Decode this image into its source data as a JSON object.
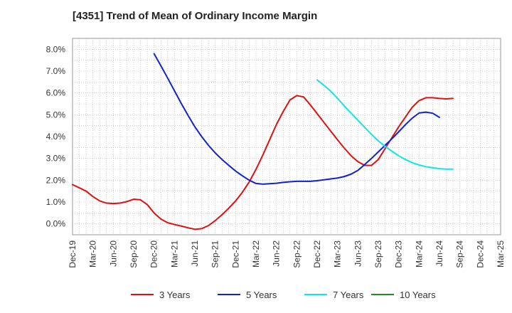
{
  "title": "[4351]  Trend of Mean of Ordinary Income Margin",
  "chart_data": {
    "type": "line",
    "title": "[4351]  Trend of Mean of Ordinary Income Margin",
    "xlabel": "",
    "ylabel": "",
    "x_range": [
      "2019-12",
      "2025-03"
    ],
    "ylim": [
      -0.5,
      8.5
    ],
    "y_ticks": [
      0,
      1,
      2,
      3,
      4,
      5,
      6,
      7,
      8
    ],
    "y_tick_labels": [
      "0.0%",
      "1.0%",
      "2.0%",
      "3.0%",
      "4.0%",
      "5.0%",
      "6.0%",
      "7.0%",
      "8.0%"
    ],
    "x_ticks": [
      "2019-12",
      "2020-03",
      "2020-06",
      "2020-09",
      "2020-12",
      "2021-03",
      "2021-06",
      "2021-09",
      "2021-12",
      "2022-03",
      "2022-06",
      "2022-09",
      "2022-12",
      "2023-03",
      "2023-06",
      "2023-09",
      "2023-12",
      "2024-03",
      "2024-06",
      "2024-09",
      "2024-12",
      "2025-03"
    ],
    "x_tick_labels": [
      "Dec-19",
      "Mar-20",
      "Jun-20",
      "Sep-20",
      "Dec-20",
      "Mar-21",
      "Jun-21",
      "Sep-21",
      "Dec-21",
      "Mar-22",
      "Jun-22",
      "Sep-22",
      "Dec-22",
      "Mar-23",
      "Jun-23",
      "Sep-23",
      "Dec-23",
      "Mar-24",
      "Jun-24",
      "Sep-24",
      "Dec-24",
      "Mar-25"
    ],
    "grid": true,
    "legend_position": "bottom",
    "series": [
      {
        "name": "3 Years",
        "color": "#dd1111",
        "points": [
          [
            "2019-12",
            1.8
          ],
          [
            "2020-01",
            1.65
          ],
          [
            "2020-02",
            1.5
          ],
          [
            "2020-03",
            1.25
          ],
          [
            "2020-04",
            1.05
          ],
          [
            "2020-05",
            0.95
          ],
          [
            "2020-06",
            0.93
          ],
          [
            "2020-07",
            0.95
          ],
          [
            "2020-08",
            1.02
          ],
          [
            "2020-09",
            1.13
          ],
          [
            "2020-10",
            1.1
          ],
          [
            "2020-11",
            0.88
          ],
          [
            "2020-12",
            0.5
          ],
          [
            "2021-01",
            0.22
          ],
          [
            "2021-02",
            0.05
          ],
          [
            "2021-03",
            -0.03
          ],
          [
            "2021-04",
            -0.1
          ],
          [
            "2021-05",
            -0.18
          ],
          [
            "2021-06",
            -0.25
          ],
          [
            "2021-07",
            -0.22
          ],
          [
            "2021-08",
            -0.08
          ],
          [
            "2021-09",
            0.15
          ],
          [
            "2021-10",
            0.42
          ],
          [
            "2021-11",
            0.72
          ],
          [
            "2021-12",
            1.05
          ],
          [
            "2022-01",
            1.45
          ],
          [
            "2022-02",
            1.92
          ],
          [
            "2022-03",
            2.5
          ],
          [
            "2022-04",
            3.15
          ],
          [
            "2022-05",
            3.85
          ],
          [
            "2022-06",
            4.55
          ],
          [
            "2022-07",
            5.15
          ],
          [
            "2022-08",
            5.68
          ],
          [
            "2022-09",
            5.88
          ],
          [
            "2022-10",
            5.82
          ],
          [
            "2022-11",
            5.45
          ],
          [
            "2022-12",
            5.05
          ],
          [
            "2023-01",
            4.65
          ],
          [
            "2023-02",
            4.25
          ],
          [
            "2023-03",
            3.85
          ],
          [
            "2023-04",
            3.47
          ],
          [
            "2023-05",
            3.12
          ],
          [
            "2023-06",
            2.85
          ],
          [
            "2023-07",
            2.68
          ],
          [
            "2023-08",
            2.68
          ],
          [
            "2023-09",
            2.95
          ],
          [
            "2023-10",
            3.45
          ],
          [
            "2023-11",
            3.95
          ],
          [
            "2023-12",
            4.45
          ],
          [
            "2024-01",
            4.9
          ],
          [
            "2024-02",
            5.35
          ],
          [
            "2024-03",
            5.65
          ],
          [
            "2024-04",
            5.78
          ],
          [
            "2024-05",
            5.78
          ],
          [
            "2024-06",
            5.75
          ],
          [
            "2024-07",
            5.73
          ],
          [
            "2024-08",
            5.75
          ]
        ]
      },
      {
        "name": "5 Years",
        "color": "#1122cc",
        "points": [
          [
            "2020-12",
            7.8
          ],
          [
            "2021-01",
            7.25
          ],
          [
            "2021-02",
            6.68
          ],
          [
            "2021-03",
            6.1
          ],
          [
            "2021-04",
            5.52
          ],
          [
            "2021-05",
            4.97
          ],
          [
            "2021-06",
            4.45
          ],
          [
            "2021-07",
            4.0
          ],
          [
            "2021-08",
            3.6
          ],
          [
            "2021-09",
            3.25
          ],
          [
            "2021-10",
            2.95
          ],
          [
            "2021-11",
            2.68
          ],
          [
            "2021-12",
            2.42
          ],
          [
            "2022-01",
            2.2
          ],
          [
            "2022-02",
            2.0
          ],
          [
            "2022-03",
            1.85
          ],
          [
            "2022-04",
            1.82
          ],
          [
            "2022-05",
            1.84
          ],
          [
            "2022-06",
            1.86
          ],
          [
            "2022-07",
            1.9
          ],
          [
            "2022-08",
            1.93
          ],
          [
            "2022-09",
            1.95
          ],
          [
            "2022-10",
            1.95
          ],
          [
            "2022-11",
            1.95
          ],
          [
            "2022-12",
            1.98
          ],
          [
            "2023-01",
            2.02
          ],
          [
            "2023-02",
            2.06
          ],
          [
            "2023-03",
            2.1
          ],
          [
            "2023-04",
            2.17
          ],
          [
            "2023-05",
            2.28
          ],
          [
            "2023-06",
            2.45
          ],
          [
            "2023-07",
            2.72
          ],
          [
            "2023-08",
            3.0
          ],
          [
            "2023-09",
            3.3
          ],
          [
            "2023-10",
            3.6
          ],
          [
            "2023-11",
            3.9
          ],
          [
            "2023-12",
            4.22
          ],
          [
            "2024-01",
            4.55
          ],
          [
            "2024-02",
            4.85
          ],
          [
            "2024-03",
            5.08
          ],
          [
            "2024-04",
            5.12
          ],
          [
            "2024-05",
            5.07
          ],
          [
            "2024-06",
            4.88
          ]
        ]
      },
      {
        "name": "7 Years",
        "color": "#11e5e5",
        "points": [
          [
            "2022-12",
            6.6
          ],
          [
            "2023-01",
            6.35
          ],
          [
            "2023-02",
            6.08
          ],
          [
            "2023-03",
            5.75
          ],
          [
            "2023-04",
            5.4
          ],
          [
            "2023-05",
            5.07
          ],
          [
            "2023-06",
            4.75
          ],
          [
            "2023-07",
            4.42
          ],
          [
            "2023-08",
            4.1
          ],
          [
            "2023-09",
            3.8
          ],
          [
            "2023-10",
            3.55
          ],
          [
            "2023-11",
            3.33
          ],
          [
            "2023-12",
            3.12
          ],
          [
            "2024-01",
            2.95
          ],
          [
            "2024-02",
            2.8
          ],
          [
            "2024-03",
            2.7
          ],
          [
            "2024-04",
            2.62
          ],
          [
            "2024-05",
            2.57
          ],
          [
            "2024-06",
            2.53
          ],
          [
            "2024-07",
            2.51
          ],
          [
            "2024-08",
            2.51
          ]
        ]
      },
      {
        "name": "10 Years",
        "color": "#228b22",
        "points": []
      }
    ]
  }
}
